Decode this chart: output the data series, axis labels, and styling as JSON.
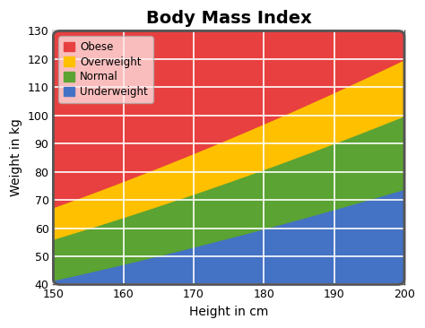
{
  "title": "Body Mass Index",
  "xlabel": "Height in cm",
  "ylabel": "Weight in kg",
  "xlim": [
    150,
    200
  ],
  "ylim": [
    40,
    130
  ],
  "xticks": [
    150,
    160,
    170,
    180,
    190,
    200
  ],
  "yticks": [
    40,
    50,
    60,
    70,
    80,
    90,
    100,
    110,
    120,
    130
  ],
  "bmi_thresholds": [
    18.5,
    25.0,
    30.0
  ],
  "colors": {
    "underweight": "#4472C4",
    "normal": "#5BA332",
    "overweight": "#FFC000",
    "obese": "#E84040"
  },
  "legend_labels": [
    "Obese",
    "Overweight",
    "Normal",
    "Underweight"
  ],
  "legend_colors": [
    "#E84040",
    "#FFC000",
    "#5BA332",
    "#4472C4"
  ],
  "fig_facecolor": "#ffffff",
  "plot_facecolor": "#cccccc",
  "title_fontsize": 14,
  "axis_label_fontsize": 10,
  "tick_fontsize": 9
}
